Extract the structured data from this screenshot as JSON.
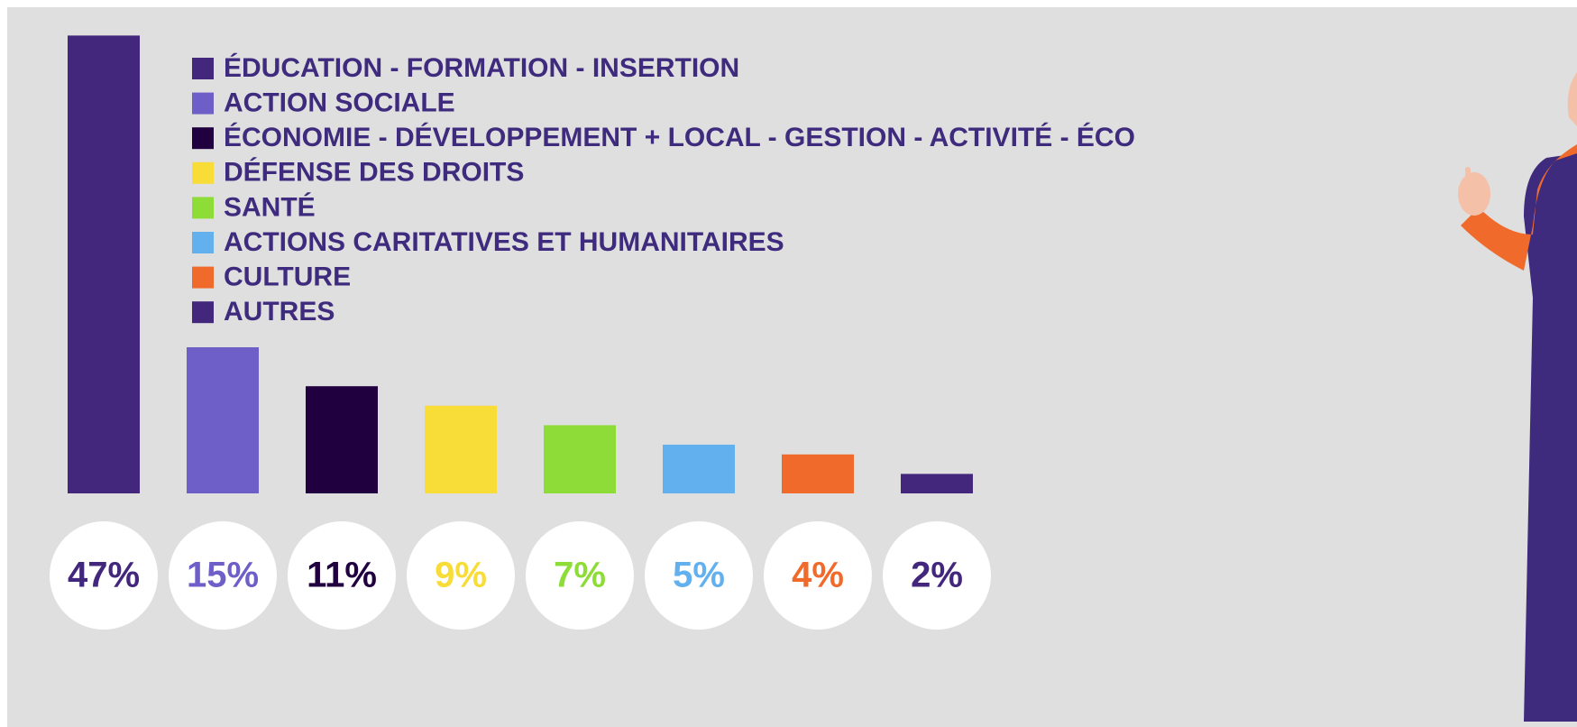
{
  "chart_data": {
    "type": "bar",
    "categories": [
      "ÉDUCATION - FORMATION - INSERTION",
      "ACTION  SOCIALE",
      "ÉCONOMIE - DÉVELOPPEMENT + LOCAL - GESTION - ACTIVITÉ - ÉCO",
      "DÉFENSE DES DROITS",
      "SANTÉ",
      "ACTIONS CARITATIVES ET HUMANITAIRES",
      "CULTURE",
      "AUTRES"
    ],
    "values": [
      47,
      15,
      11,
      9,
      7,
      5,
      4,
      2
    ],
    "value_labels": [
      "47%",
      "15%",
      "11%",
      "9%",
      "7%",
      "5%",
      "4%",
      "2%"
    ],
    "colors": [
      "#42277d",
      "#6e5fc8",
      "#21003f",
      "#f8dc37",
      "#8ddc38",
      "#62b1ee",
      "#f06b2b",
      "#42277d"
    ]
  }
}
